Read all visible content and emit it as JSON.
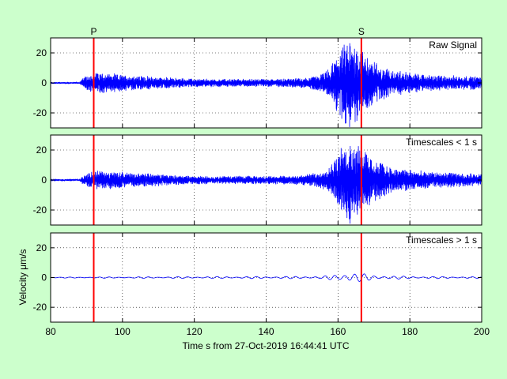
{
  "chart_data": {
    "type": "line",
    "xlabel": "Time s from 27-Oct-2019 16:44:41 UTC",
    "ylabel": "Velocity μm/s",
    "xlim": [
      80,
      200
    ],
    "ylim": [
      -30,
      30
    ],
    "x_ticks": [
      80,
      100,
      120,
      140,
      160,
      180,
      200
    ],
    "y_ticks": [
      -20,
      0,
      20
    ],
    "grid": true,
    "line_color": "#0000ff",
    "marker_color": "#ff0000",
    "phase_markers": [
      {
        "label": "P",
        "x": 92.0
      },
      {
        "label": "S",
        "x": 166.5
      }
    ],
    "panels": [
      {
        "label": "Raw Signal",
        "envelope": [
          [
            80,
            0.6
          ],
          [
            88,
            0.6
          ],
          [
            89,
            3
          ],
          [
            92,
            7
          ],
          [
            100,
            5
          ],
          [
            120,
            2.5
          ],
          [
            140,
            2.5
          ],
          [
            150,
            3
          ],
          [
            155,
            5
          ],
          [
            158,
            10
          ],
          [
            160,
            18
          ],
          [
            163,
            27
          ],
          [
            166,
            22
          ],
          [
            170,
            13
          ],
          [
            175,
            8
          ],
          [
            185,
            5
          ],
          [
            200,
            4
          ]
        ]
      },
      {
        "label": "Timescales < 1 s",
        "envelope": [
          [
            80,
            0.6
          ],
          [
            88,
            0.6
          ],
          [
            89,
            3
          ],
          [
            92,
            6
          ],
          [
            100,
            5
          ],
          [
            120,
            2.5
          ],
          [
            140,
            2.5
          ],
          [
            150,
            3
          ],
          [
            155,
            5
          ],
          [
            158,
            10
          ],
          [
            160,
            16
          ],
          [
            163,
            27
          ],
          [
            166,
            22
          ],
          [
            170,
            13
          ],
          [
            175,
            8
          ],
          [
            185,
            5
          ],
          [
            200,
            4
          ]
        ]
      },
      {
        "label": "Timescales > 1 s",
        "envelope": [
          [
            80,
            0.3
          ],
          [
            120,
            0.6
          ],
          [
            155,
            0.8
          ],
          [
            160,
            2
          ],
          [
            163,
            4
          ],
          [
            166,
            3
          ],
          [
            170,
            1.5
          ],
          [
            180,
            0.8
          ],
          [
            200,
            0.5
          ]
        ]
      }
    ]
  }
}
